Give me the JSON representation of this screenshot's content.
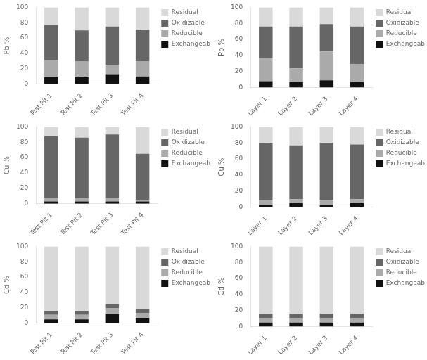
{
  "chart_data": [
    {
      "type": "bar",
      "stacked": true,
      "y_label": "Pb %",
      "categories": [
        "Test Pit 1",
        "Test Pit 2",
        "Test Pit 3",
        "Test Pit 4"
      ],
      "series": [
        {
          "name": "Exchangeable",
          "color": "#111111",
          "values": [
            9,
            9,
            13,
            10
          ]
        },
        {
          "name": "Reducible",
          "color": "#aaaaaa",
          "values": [
            22,
            21,
            12,
            20
          ]
        },
        {
          "name": "Oxidizable",
          "color": "#666666",
          "values": [
            46,
            40,
            50,
            41
          ]
        },
        {
          "name": "Residual",
          "color": "#d9d9d9",
          "values": [
            23,
            30,
            25,
            29
          ]
        }
      ],
      "ylim": [
        0,
        100
      ],
      "yticks": [
        0,
        20,
        40,
        60,
        80,
        100
      ],
      "grid": false,
      "legend": "right"
    },
    {
      "type": "bar",
      "stacked": true,
      "y_label": "Pb %",
      "categories": [
        "Layer 1",
        "Layer 2",
        "Layer 3",
        "Layer 4"
      ],
      "series": [
        {
          "name": "Exchangeable",
          "color": "#111111",
          "values": [
            8,
            7,
            9,
            7
          ]
        },
        {
          "name": "Reducible",
          "color": "#aaaaaa",
          "values": [
            28,
            17,
            36,
            22
          ]
        },
        {
          "name": "Oxidizable",
          "color": "#666666",
          "values": [
            40,
            52,
            34,
            47
          ]
        },
        {
          "name": "Residual",
          "color": "#d9d9d9",
          "values": [
            24,
            24,
            21,
            24
          ]
        }
      ],
      "ylim": [
        0,
        100
      ],
      "yticks": [
        0,
        20,
        40,
        60,
        80,
        100
      ],
      "grid": false,
      "legend": "right"
    },
    {
      "type": "bar",
      "stacked": true,
      "y_label": "Cu %",
      "categories": [
        "Test Pit 1",
        "Test Pit 2",
        "Test Pit 3",
        "Test Pit 4"
      ],
      "series": [
        {
          "name": "Exchangeable",
          "color": "#111111",
          "values": [
            3,
            3,
            3,
            3
          ]
        },
        {
          "name": "Reducible",
          "color": "#aaaaaa",
          "values": [
            5,
            4,
            5,
            2
          ]
        },
        {
          "name": "Oxidizable",
          "color": "#666666",
          "values": [
            80,
            79,
            82,
            60
          ]
        },
        {
          "name": "Residual",
          "color": "#d9d9d9",
          "values": [
            12,
            14,
            10,
            35
          ]
        }
      ],
      "ylim": [
        0,
        100
      ],
      "yticks": [
        0,
        20,
        40,
        60,
        80,
        100
      ],
      "grid": false,
      "legend": "right"
    },
    {
      "type": "bar",
      "stacked": true,
      "y_label": "Cu %",
      "categories": [
        "Layer 1",
        "Layer 2",
        "Layer 3",
        "Layer 4"
      ],
      "series": [
        {
          "name": "Exchangeable",
          "color": "#111111",
          "values": [
            3,
            5,
            3,
            5
          ]
        },
        {
          "name": "Reducible",
          "color": "#aaaaaa",
          "values": [
            5,
            5,
            6,
            5
          ]
        },
        {
          "name": "Oxidizable",
          "color": "#666666",
          "values": [
            72,
            67,
            71,
            68
          ]
        },
        {
          "name": "Residual",
          "color": "#d9d9d9",
          "values": [
            20,
            23,
            20,
            22
          ]
        }
      ],
      "ylim": [
        0,
        100
      ],
      "yticks": [
        0,
        20,
        40,
        60,
        80,
        100
      ],
      "grid": false,
      "legend": "right"
    },
    {
      "type": "bar",
      "stacked": true,
      "y_label": "Cd %",
      "categories": [
        "Test Pit 1",
        "Test Pit 2",
        "Test Pit 3",
        "Test Pit 4"
      ],
      "series": [
        {
          "name": "Exchangeable",
          "color": "#111111",
          "values": [
            5,
            5,
            12,
            7
          ]
        },
        {
          "name": "Reducible",
          "color": "#aaaaaa",
          "values": [
            6,
            6,
            8,
            6
          ]
        },
        {
          "name": "Oxidizable",
          "color": "#666666",
          "values": [
            5,
            5,
            5,
            5
          ]
        },
        {
          "name": "Residual",
          "color": "#d9d9d9",
          "values": [
            84,
            84,
            75,
            82
          ]
        }
      ],
      "ylim": [
        0,
        100
      ],
      "yticks": [
        0,
        20,
        40,
        60,
        80,
        100
      ],
      "grid": false,
      "legend": "right"
    },
    {
      "type": "bar",
      "stacked": true,
      "y_label": "Cd %",
      "categories": [
        "Layer 1",
        "Layer 2",
        "Layer 3",
        "Layer 4"
      ],
      "series": [
        {
          "name": "Exchangeable",
          "color": "#111111",
          "values": [
            5,
            5,
            5,
            5
          ]
        },
        {
          "name": "Reducible",
          "color": "#aaaaaa",
          "values": [
            6,
            6,
            6,
            6
          ]
        },
        {
          "name": "Oxidizable",
          "color": "#666666",
          "values": [
            5,
            5,
            5,
            5
          ]
        },
        {
          "name": "Residual",
          "color": "#d9d9d9",
          "values": [
            84,
            84,
            84,
            84
          ]
        }
      ],
      "ylim": [
        0,
        100
      ],
      "yticks": [
        0,
        20,
        40,
        60,
        80,
        100
      ],
      "grid": false,
      "legend": "right"
    }
  ]
}
